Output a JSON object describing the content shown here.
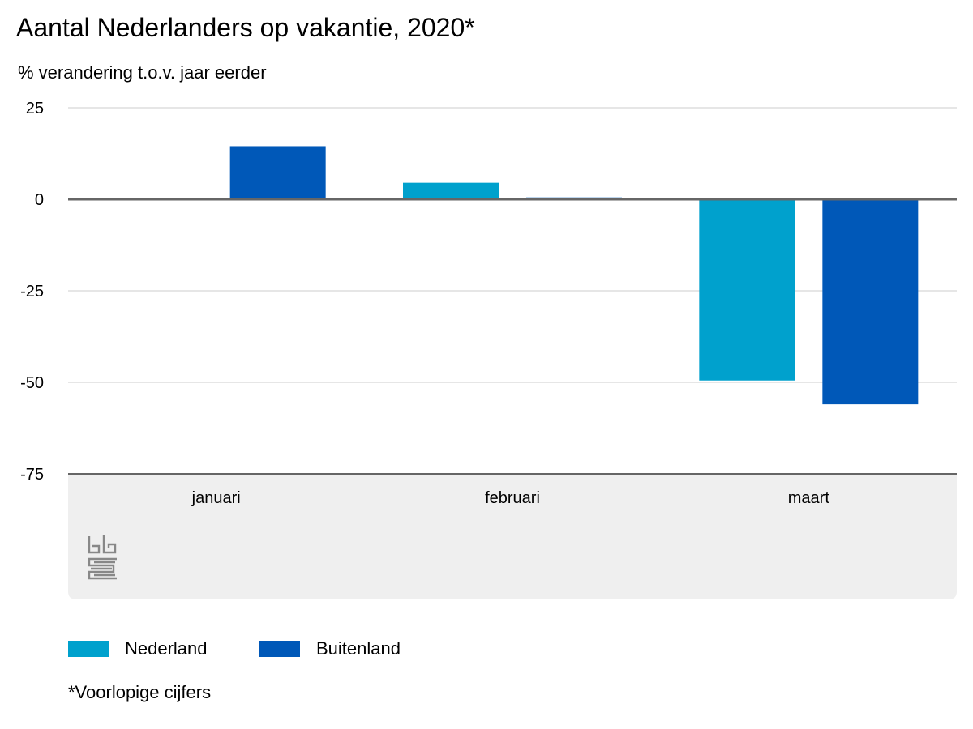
{
  "colors": {
    "nederland": "#00a1cd",
    "buitenland": "#0058b8",
    "grid": "#cccccc",
    "axis": "#666666",
    "panel": "#efefef",
    "logo": "#888888"
  },
  "chart_data": {
    "type": "bar",
    "title": "Aantal Nederlanders op vakantie, 2020*",
    "subtitle": "% verandering t.o.v. jaar eerder",
    "categories": [
      "januari",
      "februari",
      "maart"
    ],
    "series": [
      {
        "name": "Nederland",
        "color": "#00a1cd",
        "values": [
          0,
          4.5,
          -49.5
        ]
      },
      {
        "name": "Buitenland",
        "color": "#0058b8",
        "values": [
          14.5,
          0.5,
          -56
        ]
      }
    ],
    "y_ticks": [
      25,
      0,
      -25,
      -50,
      -75
    ],
    "y_tick_labels": [
      "25",
      "0",
      "-25",
      "-50",
      "-75"
    ],
    "ylim": [
      -75,
      25
    ],
    "grid": true,
    "legend_position": "bottom-left",
    "footnote": "*Voorlopige cijfers"
  }
}
